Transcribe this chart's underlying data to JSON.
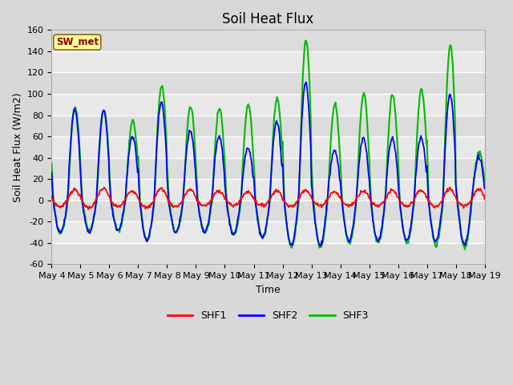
{
  "title": "Soil Heat Flux",
  "ylabel": "Soil Heat Flux (W/m2)",
  "xlabel": "Time",
  "ylim": [
    -60,
    160
  ],
  "xtick_labels": [
    "May 4",
    "May 5",
    "May 6",
    "May 7",
    "May 8",
    "May 9",
    "May 10",
    "May 11",
    "May 12",
    "May 13",
    "May 14",
    "May 15",
    "May 16",
    "May 17",
    "May 18",
    "May 19"
  ],
  "ytick_values": [
    -60,
    -40,
    -20,
    0,
    20,
    40,
    60,
    80,
    100,
    120,
    140,
    160
  ],
  "shf1_color": "#FF0000",
  "shf2_color": "#0000FF",
  "shf3_color": "#00BB00",
  "shf1_lw": 1.3,
  "shf2_lw": 1.3,
  "shf3_lw": 1.5,
  "fig_bg_color": "#D8D8D8",
  "plot_bg_color": "#E8E8E8",
  "annotation_text": "SW_met",
  "annotation_color": "#8B0000",
  "annotation_bg": "#FFFF99",
  "legend_labels": [
    "SHF1",
    "SHF2",
    "SHF3"
  ],
  "title_fontsize": 12,
  "label_fontsize": 9,
  "tick_fontsize": 8,
  "band_colors": [
    "#DCDCDC",
    "#E8E8E8"
  ],
  "band_edges": [
    -60,
    -40,
    -20,
    0,
    20,
    40,
    60,
    80,
    100,
    120,
    140,
    160
  ]
}
